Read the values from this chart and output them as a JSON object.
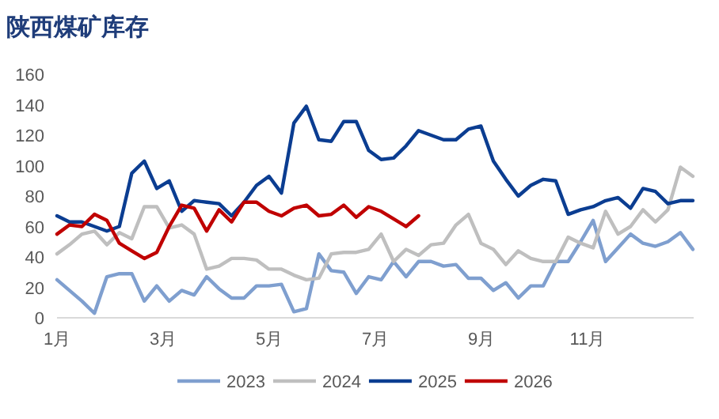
{
  "chart_data": {
    "type": "line",
    "title": "陕西煤矿库存",
    "x": [
      1,
      1.235,
      1.47,
      1.705,
      1.94,
      2.175,
      2.41,
      2.645,
      2.88,
      3.115,
      3.35,
      3.585,
      3.82,
      4.055,
      4.29,
      4.525,
      4.76,
      4.995,
      5.23,
      5.465,
      5.7,
      5.935,
      6.17,
      6.405,
      6.64,
      6.875,
      7.11,
      7.345,
      7.58,
      7.815,
      8.05,
      8.285,
      8.52,
      8.755,
      8.99,
      9.225,
      9.46,
      9.695,
      9.93,
      10.165,
      10.4,
      10.635,
      10.87,
      11.105,
      11.34,
      11.575,
      11.81,
      12.045,
      12.28,
      12.515,
      12.75,
      12.985
    ],
    "xlim": [
      1,
      13
    ],
    "xticks": [
      {
        "value": 1,
        "label": "1月"
      },
      {
        "value": 3,
        "label": "3月"
      },
      {
        "value": 5,
        "label": "5月"
      },
      {
        "value": 7,
        "label": "7月"
      },
      {
        "value": 9,
        "label": "9月"
      },
      {
        "value": 11,
        "label": "11月"
      }
    ],
    "ylim": [
      0,
      160
    ],
    "yticks": [
      0,
      20,
      40,
      60,
      80,
      100,
      120,
      140,
      160
    ],
    "legend": "bottom",
    "series": [
      {
        "name": "2023",
        "color": "#7f9fcf",
        "values": [
          25,
          18,
          11,
          3,
          27,
          29,
          29,
          11,
          21,
          11,
          18,
          15,
          27,
          19,
          13,
          13,
          21,
          21,
          22,
          4,
          6,
          42,
          31,
          30,
          16,
          27,
          25,
          37,
          27,
          37,
          37,
          34,
          35,
          26,
          26,
          18,
          23,
          13,
          21,
          21,
          37,
          37,
          50,
          64,
          37,
          46,
          55,
          49,
          47,
          50,
          56,
          45
        ]
      },
      {
        "name": "2024",
        "color": "#bfbfbf",
        "values": [
          42,
          48,
          55,
          57,
          48,
          56,
          52,
          73,
          73,
          59,
          61,
          55,
          32,
          34,
          39,
          39,
          38,
          32,
          32,
          28,
          25,
          26,
          42,
          43,
          43,
          45,
          55,
          37,
          45,
          41,
          48,
          49,
          61,
          68,
          49,
          45,
          35,
          44,
          39,
          37,
          37,
          53,
          49,
          46,
          70,
          55,
          60,
          71,
          63,
          71,
          99,
          93
        ]
      },
      {
        "name": "2025",
        "color": "#0b3d91",
        "values": [
          67,
          63,
          63,
          60,
          57,
          60,
          95,
          103,
          85,
          90,
          70,
          77,
          76,
          75,
          67,
          76,
          87,
          93,
          82,
          128,
          139,
          117,
          116,
          129,
          129,
          110,
          104,
          105,
          113,
          123,
          120,
          117,
          117,
          124,
          126,
          103,
          91,
          80,
          87,
          91,
          90,
          68,
          71,
          73,
          77,
          79,
          72,
          85,
          83,
          75,
          77,
          77
        ]
      },
      {
        "name": "2026",
        "color": "#c00000",
        "values": [
          55,
          61,
          60,
          68,
          64,
          49,
          44,
          39,
          43,
          60,
          74,
          72,
          57,
          71,
          63,
          76,
          76,
          70,
          67,
          72,
          74,
          67,
          68,
          74,
          66,
          73,
          70,
          65,
          60,
          67,
          null,
          null,
          null,
          null,
          null,
          null,
          null,
          null,
          null,
          null,
          null,
          null,
          null,
          null,
          null,
          null,
          null,
          null,
          null,
          null,
          null,
          null
        ]
      }
    ]
  }
}
